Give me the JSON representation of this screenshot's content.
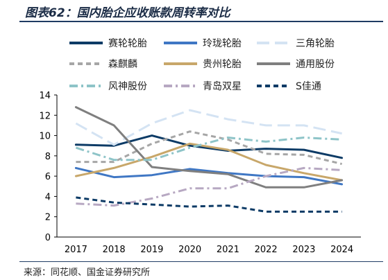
{
  "title": "图表62：国内胎企应收账款周转率对比",
  "source": "来源：同花顺、国金证券研究所",
  "chart_data": {
    "type": "line",
    "x": [
      "2017",
      "2018",
      "2019",
      "2020",
      "2021",
      "2022",
      "2023",
      "2024"
    ],
    "ylim": [
      0,
      14
    ],
    "yticks": [
      0,
      2,
      4,
      6,
      8,
      10,
      12,
      14
    ],
    "grid": false,
    "legend_position": "top",
    "series": [
      {
        "name": "赛轮轮胎",
        "color": "#0d3b66",
        "dash": "solid",
        "width": 3,
        "values": [
          9.1,
          9.0,
          10.0,
          9.0,
          8.5,
          8.7,
          8.6,
          7.8
        ]
      },
      {
        "name": "玲珑轮胎",
        "color": "#3f77c4",
        "dash": "solid",
        "width": 3,
        "values": [
          6.8,
          5.9,
          6.1,
          6.7,
          6.3,
          6.0,
          5.9,
          5.2
        ]
      },
      {
        "name": "三角轮胎",
        "color": "#d4e3f3",
        "dash": "longdash",
        "width": 3,
        "values": [
          11.2,
          9.1,
          11.2,
          12.5,
          11.6,
          11.0,
          11.0,
          10.2
        ]
      },
      {
        "name": "森麒麟",
        "color": "#a6a6a6",
        "dash": "dash",
        "width": 3,
        "values": [
          7.4,
          7.4,
          9.2,
          10.4,
          9.6,
          8.2,
          8.1,
          7.2
        ]
      },
      {
        "name": "贵州轮胎",
        "color": "#c8a76a",
        "dash": "solid",
        "width": 3,
        "values": [
          6.0,
          6.8,
          7.9,
          9.2,
          8.6,
          7.1,
          6.3,
          5.6
        ]
      },
      {
        "name": "通用股份",
        "color": "#7f7f7f",
        "dash": "solid",
        "width": 3,
        "values": [
          12.8,
          11.0,
          6.9,
          6.5,
          6.2,
          4.9,
          4.9,
          5.6
        ]
      },
      {
        "name": "风神股份",
        "color": "#8ec4c8",
        "dash": "dashdot",
        "width": 3,
        "values": [
          8.8,
          7.6,
          7.6,
          8.8,
          9.8,
          9.4,
          9.8,
          9.6
        ]
      },
      {
        "name": "青岛双星",
        "color": "#b7a8c2",
        "dash": "dashdot",
        "width": 3,
        "values": [
          3.3,
          3.1,
          3.8,
          4.8,
          4.8,
          6.0,
          6.8,
          6.6
        ]
      },
      {
        "name": "S佳通",
        "color": "#0d3b66",
        "dash": "dash",
        "width": 3,
        "values": [
          3.9,
          3.4,
          3.2,
          3.0,
          3.1,
          2.5,
          2.5,
          2.5
        ]
      }
    ]
  }
}
